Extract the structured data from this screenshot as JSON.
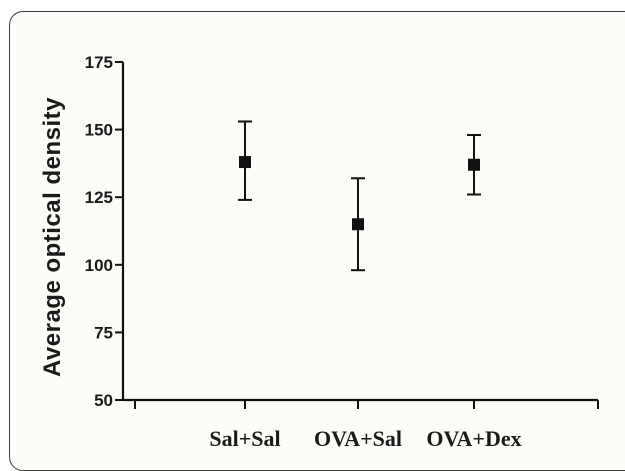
{
  "chart_data": {
    "type": "scatter",
    "title": "",
    "xlabel": "",
    "ylabel": "Average optical density",
    "ylim": [
      50,
      175
    ],
    "yticks": [
      50,
      75,
      100,
      125,
      150,
      175
    ],
    "categories": [
      "Sal+Sal",
      "OVA+Sal",
      "OVA+Dex"
    ],
    "series": [
      {
        "values": [
          138,
          115,
          137
        ],
        "error_low": [
          124,
          98,
          126
        ],
        "error_high": [
          153,
          132,
          148
        ]
      }
    ],
    "grid": false,
    "colors": {
      "marker": "#111111",
      "axis": "#111111",
      "frame": "#3a3a3a",
      "background": "#fcfcf8"
    }
  }
}
